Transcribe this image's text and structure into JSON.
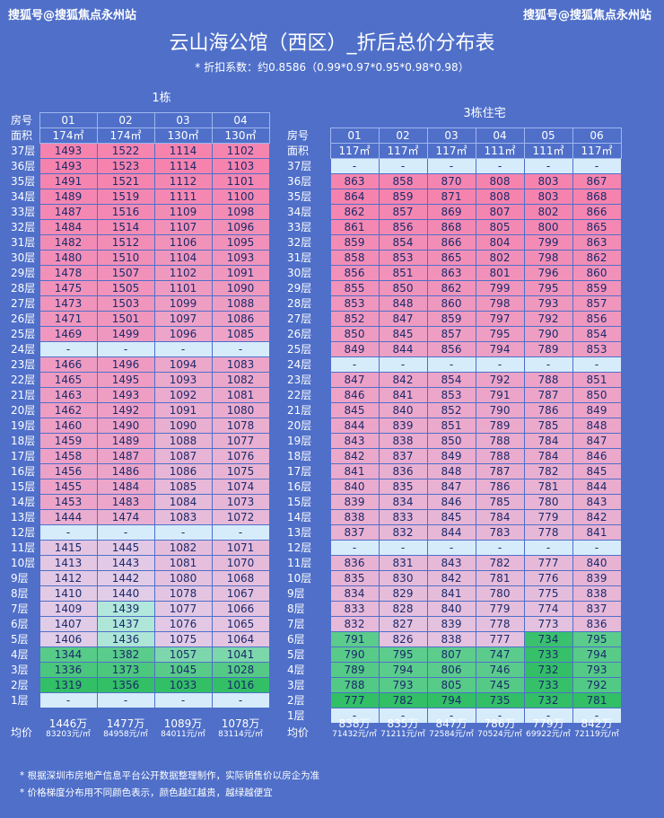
{
  "watermark": {
    "left": "搜狐号@搜狐焦点永州站",
    "right": "搜狐号@搜狐焦点永州站"
  },
  "title": "云山海公馆（西区）_折后总价分布表",
  "subtitle": "* 折扣系数：约0.8586（0.99*0.97*0.95*0.98*0.98）",
  "colors": {
    "bg": "#4f6fc9",
    "high": "#f583ae",
    "low": "#32bf66",
    "neutral": "#d6ecfb"
  },
  "labels": {
    "room": "房号",
    "area": "面积",
    "avg": "均价"
  },
  "b1": {
    "title": "1栋",
    "rooms": [
      "01",
      "02",
      "03",
      "04"
    ],
    "areas": [
      "174㎡",
      "174㎡",
      "130㎡",
      "130㎡"
    ],
    "rows": [
      [
        "37层",
        "1493",
        "1522",
        "1114",
        "1102"
      ],
      [
        "36层",
        "1493",
        "1523",
        "1114",
        "1103"
      ],
      [
        "35层",
        "1491",
        "1521",
        "1112",
        "1101"
      ],
      [
        "34层",
        "1489",
        "1519",
        "1111",
        "1100"
      ],
      [
        "33层",
        "1487",
        "1516",
        "1109",
        "1098"
      ],
      [
        "32层",
        "1484",
        "1514",
        "1107",
        "1096"
      ],
      [
        "31层",
        "1482",
        "1512",
        "1106",
        "1095"
      ],
      [
        "30层",
        "1480",
        "1510",
        "1104",
        "1093"
      ],
      [
        "29层",
        "1478",
        "1507",
        "1102",
        "1091"
      ],
      [
        "28层",
        "1475",
        "1505",
        "1101",
        "1090"
      ],
      [
        "27层",
        "1473",
        "1503",
        "1099",
        "1088"
      ],
      [
        "26层",
        "1471",
        "1501",
        "1097",
        "1086"
      ],
      [
        "25层",
        "1469",
        "1499",
        "1096",
        "1085"
      ],
      [
        "24层",
        "-",
        "-",
        "-",
        "-"
      ],
      [
        "23层",
        "1466",
        "1496",
        "1094",
        "1083"
      ],
      [
        "22层",
        "1465",
        "1495",
        "1093",
        "1082"
      ],
      [
        "21层",
        "1463",
        "1493",
        "1092",
        "1081"
      ],
      [
        "20层",
        "1462",
        "1492",
        "1091",
        "1080"
      ],
      [
        "19层",
        "1460",
        "1490",
        "1090",
        "1078"
      ],
      [
        "18层",
        "1459",
        "1489",
        "1088",
        "1077"
      ],
      [
        "17层",
        "1458",
        "1487",
        "1087",
        "1076"
      ],
      [
        "16层",
        "1456",
        "1486",
        "1086",
        "1075"
      ],
      [
        "15层",
        "1455",
        "1484",
        "1085",
        "1074"
      ],
      [
        "14层",
        "1453",
        "1483",
        "1084",
        "1073"
      ],
      [
        "13层",
        "1444",
        "1474",
        "1083",
        "1072"
      ],
      [
        "12层",
        "-",
        "-",
        "-",
        "-"
      ],
      [
        "11层",
        "1415",
        "1445",
        "1082",
        "1071"
      ],
      [
        "10层",
        "1413",
        "1443",
        "1081",
        "1070"
      ],
      [
        "9层",
        "1412",
        "1442",
        "1080",
        "1068"
      ],
      [
        "8层",
        "1410",
        "1440",
        "1078",
        "1067"
      ],
      [
        "7层",
        "1409",
        "1439",
        "1077",
        "1066"
      ],
      [
        "6层",
        "1407",
        "1437",
        "1076",
        "1065"
      ],
      [
        "5层",
        "1406",
        "1436",
        "1075",
        "1064"
      ],
      [
        "4层",
        "1344",
        "1382",
        "1057",
        "1041"
      ],
      [
        "3层",
        "1336",
        "1373",
        "1045",
        "1028"
      ],
      [
        "2层",
        "1319",
        "1356",
        "1033",
        "1016"
      ],
      [
        "1层",
        "-",
        "-",
        "-",
        "-"
      ]
    ],
    "totals": [
      "1446万",
      "1477万",
      "1089万",
      "1078万"
    ],
    "units": [
      "83203元/㎡",
      "84958元/㎡",
      "84011元/㎡",
      "83114元/㎡"
    ]
  },
  "b3": {
    "title": "3栋住宅",
    "rooms": [
      "01",
      "02",
      "03",
      "04",
      "05",
      "06"
    ],
    "areas": [
      "117㎡",
      "117㎡",
      "117㎡",
      "111㎡",
      "111㎡",
      "117㎡"
    ],
    "rows": [
      [
        "37层",
        "-",
        "-",
        "-",
        "-",
        "-",
        "-"
      ],
      [
        "36层",
        "863",
        "858",
        "870",
        "808",
        "803",
        "867"
      ],
      [
        "35层",
        "864",
        "859",
        "871",
        "808",
        "803",
        "868"
      ],
      [
        "34层",
        "862",
        "857",
        "869",
        "807",
        "802",
        "866"
      ],
      [
        "33层",
        "861",
        "856",
        "868",
        "805",
        "800",
        "865"
      ],
      [
        "32层",
        "859",
        "854",
        "866",
        "804",
        "799",
        "863"
      ],
      [
        "31层",
        "858",
        "853",
        "865",
        "802",
        "798",
        "862"
      ],
      [
        "30层",
        "856",
        "851",
        "863",
        "801",
        "796",
        "860"
      ],
      [
        "29层",
        "855",
        "850",
        "862",
        "799",
        "795",
        "859"
      ],
      [
        "28层",
        "853",
        "848",
        "860",
        "798",
        "793",
        "857"
      ],
      [
        "27层",
        "852",
        "847",
        "859",
        "797",
        "792",
        "856"
      ],
      [
        "26层",
        "850",
        "845",
        "857",
        "795",
        "790",
        "854"
      ],
      [
        "25层",
        "849",
        "844",
        "856",
        "794",
        "789",
        "853"
      ],
      [
        "24层",
        "-",
        "-",
        "-",
        "-",
        "-",
        "-"
      ],
      [
        "23层",
        "847",
        "842",
        "854",
        "792",
        "788",
        "851"
      ],
      [
        "22层",
        "846",
        "841",
        "853",
        "791",
        "787",
        "850"
      ],
      [
        "21层",
        "845",
        "840",
        "852",
        "790",
        "786",
        "849"
      ],
      [
        "20层",
        "844",
        "839",
        "851",
        "789",
        "785",
        "848"
      ],
      [
        "19层",
        "843",
        "838",
        "850",
        "788",
        "784",
        "847"
      ],
      [
        "18层",
        "842",
        "837",
        "849",
        "788",
        "784",
        "846"
      ],
      [
        "17层",
        "841",
        "836",
        "848",
        "787",
        "782",
        "845"
      ],
      [
        "16层",
        "840",
        "835",
        "847",
        "786",
        "781",
        "844"
      ],
      [
        "15层",
        "839",
        "834",
        "846",
        "785",
        "780",
        "843"
      ],
      [
        "14层",
        "838",
        "833",
        "845",
        "784",
        "779",
        "842"
      ],
      [
        "13层",
        "837",
        "832",
        "844",
        "783",
        "778",
        "841"
      ],
      [
        "12层",
        "-",
        "-",
        "-",
        "-",
        "-",
        "-"
      ],
      [
        "11层",
        "836",
        "831",
        "843",
        "782",
        "777",
        "840"
      ],
      [
        "10层",
        "835",
        "830",
        "842",
        "781",
        "776",
        "839"
      ],
      [
        "9层",
        "834",
        "829",
        "841",
        "780",
        "775",
        "838"
      ],
      [
        "8层",
        "833",
        "828",
        "840",
        "779",
        "774",
        "837"
      ],
      [
        "7层",
        "832",
        "827",
        "839",
        "778",
        "773",
        "836"
      ],
      [
        "6层",
        "791",
        "826",
        "838",
        "777",
        "734",
        "795"
      ],
      [
        "5层",
        "790",
        "795",
        "807",
        "747",
        "733",
        "794"
      ],
      [
        "4层",
        "789",
        "794",
        "806",
        "746",
        "732",
        "793"
      ],
      [
        "3层",
        "788",
        "793",
        "805",
        "745",
        "733",
        "792"
      ],
      [
        "2层",
        "777",
        "782",
        "794",
        "735",
        "732",
        "781"
      ],
      [
        "1层",
        "-",
        "-",
        "-",
        "-",
        "-",
        "-"
      ]
    ],
    "totals": [
      "838万",
      "835万",
      "847万",
      "786万",
      "779万",
      "842万"
    ],
    "units": [
      "71432元/㎡",
      "71211元/㎡",
      "72584元/㎡",
      "70524元/㎡",
      "69922元/㎡",
      "72119元/㎡"
    ]
  },
  "notes": [
    "* 根据深圳市房地产信息平台公开数据整理制作，实际销售价以房企为准",
    "* 价格梯度分布用不同颜色表示，颜色越红越贵，越绿越便宜"
  ]
}
